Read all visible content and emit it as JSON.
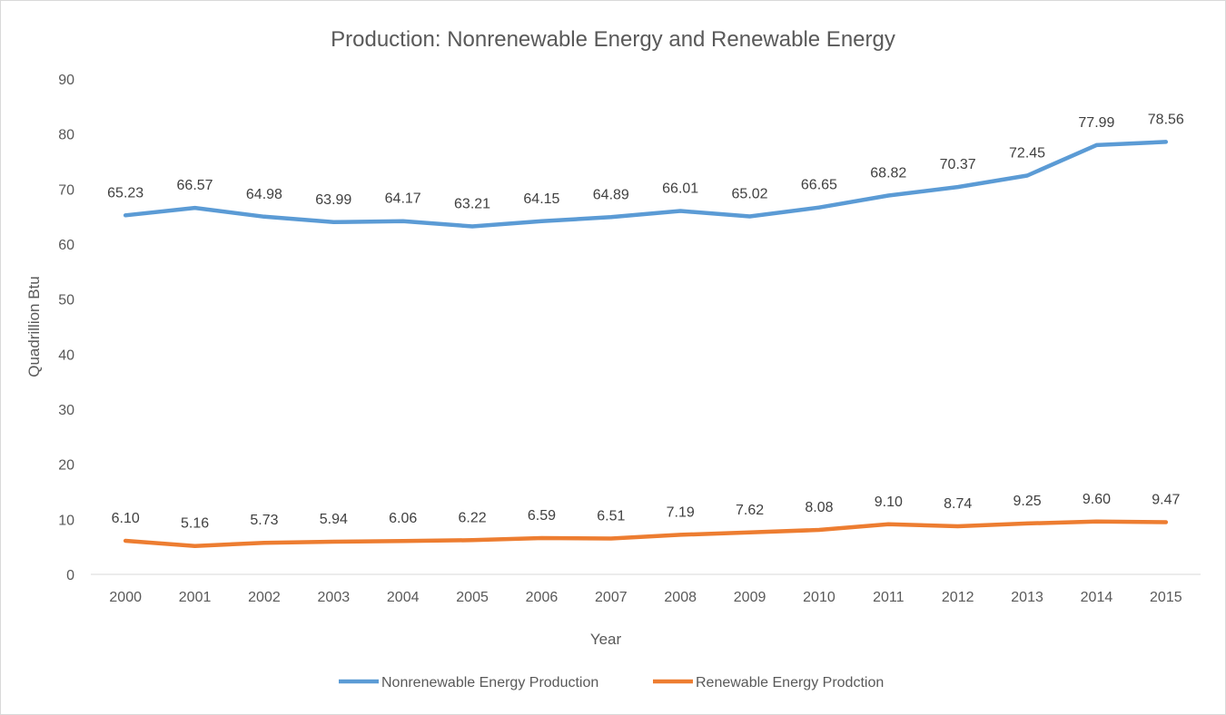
{
  "chart_data": {
    "type": "line",
    "title": "Production: Nonrenewable Energy and Renewable Energy",
    "xlabel": "Year",
    "ylabel": "Quadrillion Btu",
    "ylim": [
      0,
      90
    ],
    "yticks": [
      0,
      10,
      20,
      30,
      40,
      50,
      60,
      70,
      80,
      90
    ],
    "grid": false,
    "legend_position": "bottom",
    "categories": [
      "2000",
      "2001",
      "2002",
      "2003",
      "2004",
      "2005",
      "2006",
      "2007",
      "2008",
      "2009",
      "2010",
      "2011",
      "2012",
      "2013",
      "2014",
      "2015"
    ],
    "series": [
      {
        "name": "Nonrenewable Energy Production",
        "color": "#5b9bd5",
        "values": [
          65.23,
          66.57,
          64.98,
          63.99,
          64.17,
          63.21,
          64.15,
          64.89,
          66.01,
          65.02,
          66.65,
          68.82,
          70.37,
          72.45,
          77.99,
          78.56
        ],
        "labels": [
          "65.23",
          "66.57",
          "64.98",
          "63.99",
          "64.17",
          "63.21",
          "64.15",
          "64.89",
          "66.01",
          "65.02",
          "66.65",
          "68.82",
          "70.37",
          "72.45",
          "77.99",
          "78.56"
        ]
      },
      {
        "name": "Renewable Energy Prodction",
        "color": "#ed7d31",
        "values": [
          6.1,
          5.16,
          5.73,
          5.94,
          6.06,
          6.22,
          6.59,
          6.51,
          7.19,
          7.62,
          8.08,
          9.1,
          8.74,
          9.25,
          9.6,
          9.47
        ],
        "labels": [
          "6.10",
          "5.16",
          "5.73",
          "5.94",
          "6.06",
          "6.22",
          "6.59",
          "6.51",
          "7.19",
          "7.62",
          "8.08",
          "9.10",
          "8.74",
          "9.25",
          "9.60",
          "9.47"
        ]
      }
    ]
  }
}
